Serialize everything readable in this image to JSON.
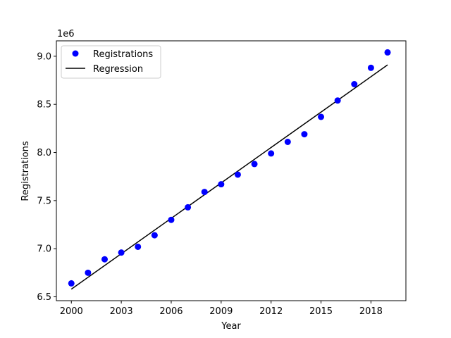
{
  "chart_data": {
    "type": "scatter",
    "xlabel": "Year",
    "ylabel": "Registrations",
    "y_offset_label": "1e6",
    "xlim": [
      1999.1,
      2020.1
    ],
    "ylim": [
      6.46,
      9.16
    ],
    "x_ticks": [
      2000,
      2003,
      2006,
      2009,
      2012,
      2015,
      2018
    ],
    "y_ticks": [
      6.5,
      7.0,
      7.5,
      8.0,
      8.5,
      9.0
    ],
    "y_tick_labels": [
      "6.5",
      "7.0",
      "7.5",
      "8.0",
      "8.5",
      "9.0"
    ],
    "grid": false,
    "legend_position": "top-left",
    "series": [
      {
        "name": "Registrations",
        "kind": "scatter",
        "color": "#0000ff",
        "x": [
          2000,
          2001,
          2002,
          2003,
          2004,
          2005,
          2006,
          2007,
          2008,
          2009,
          2010,
          2011,
          2012,
          2013,
          2014,
          2015,
          2016,
          2017,
          2018,
          2019
        ],
        "y": [
          6.64,
          6.75,
          6.89,
          6.96,
          7.02,
          7.14,
          7.3,
          7.43,
          7.59,
          7.67,
          7.77,
          7.88,
          7.99,
          8.11,
          8.19,
          8.37,
          8.54,
          8.71,
          8.88,
          9.04
        ]
      },
      {
        "name": "Regression",
        "kind": "line",
        "color": "#000000",
        "x": [
          2000,
          2019
        ],
        "y": [
          6.58,
          8.91
        ]
      }
    ]
  }
}
